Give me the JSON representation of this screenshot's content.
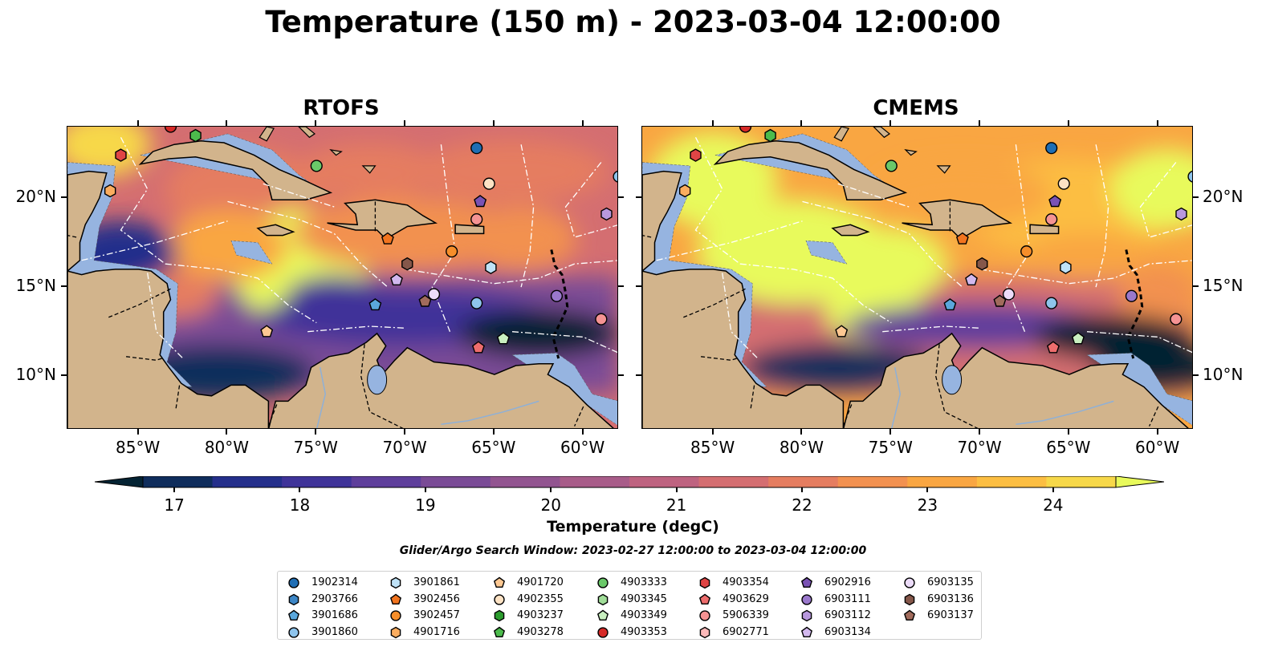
{
  "title": "Temperature (150 m) - 2023-03-04 12:00:00",
  "panels": [
    {
      "title": "RTOFS"
    },
    {
      "title": "CMEMS"
    }
  ],
  "axes": {
    "lon_ticks": [
      "85°W",
      "80°W",
      "75°W",
      "70°W",
      "65°W",
      "60°W"
    ],
    "lat_ticks": [
      "20°N",
      "15°N",
      "10°N"
    ],
    "lon_range": [
      -89,
      -58
    ],
    "lat_range": [
      7,
      24
    ]
  },
  "colorbar": {
    "label": "Temperature (degC)",
    "ticks": [
      "17",
      "18",
      "19",
      "20",
      "21",
      "22",
      "23",
      "24"
    ],
    "min": 16.75,
    "max": 24.5,
    "colors": [
      "#042333",
      "#0f2d5c",
      "#242f8b",
      "#3f3399",
      "#5e3e9b",
      "#7a4b96",
      "#925490",
      "#a85c89",
      "#be6380",
      "#d46e71",
      "#e57d60",
      "#f29150",
      "#f9a642",
      "#fcbe42",
      "#f7d849",
      "#e8fa5b"
    ]
  },
  "search_window": "Glider/Argo Search Window: 2023-02-27 12:00:00 to 2023-03-04 12:00:00",
  "legend": [
    {
      "label": "1902314",
      "marker": "circle",
      "color": "#1f6eb4"
    },
    {
      "label": "2903766",
      "marker": "hexagon",
      "color": "#3c86c6"
    },
    {
      "label": "3901686",
      "marker": "pentagon",
      "color": "#5aa7dc"
    },
    {
      "label": "3901860",
      "marker": "circle",
      "color": "#8ec4ec"
    },
    {
      "label": "3901861",
      "marker": "hexagon",
      "color": "#bfe2f7"
    },
    {
      "label": "3902456",
      "marker": "pentagon",
      "color": "#f2741f"
    },
    {
      "label": "3902457",
      "marker": "circle",
      "color": "#f68e2a"
    },
    {
      "label": "4901716",
      "marker": "hexagon",
      "color": "#fbad5f"
    },
    {
      "label": "4901720",
      "marker": "pentagon",
      "color": "#fdc892"
    },
    {
      "label": "4902355",
      "marker": "circle",
      "color": "#fde2c4"
    },
    {
      "label": "4903237",
      "marker": "hexagon",
      "color": "#2c9c2e"
    },
    {
      "label": "4903278",
      "marker": "pentagon",
      "color": "#4cbb4c"
    },
    {
      "label": "4903333",
      "marker": "circle",
      "color": "#6ac869"
    },
    {
      "label": "4903345",
      "marker": "hexagon",
      "color": "#a0dd98"
    },
    {
      "label": "4903349",
      "marker": "pentagon",
      "color": "#c9f0c0"
    },
    {
      "label": "4903353",
      "marker": "circle",
      "color": "#d62a28"
    },
    {
      "label": "4903354",
      "marker": "hexagon",
      "color": "#e04545"
    },
    {
      "label": "4903629",
      "marker": "pentagon",
      "color": "#ee6d6d"
    },
    {
      "label": "5906339",
      "marker": "circle",
      "color": "#f59393"
    },
    {
      "label": "6902771",
      "marker": "hexagon",
      "color": "#fbb9b9"
    },
    {
      "label": "6902916",
      "marker": "pentagon",
      "color": "#7a52b4"
    },
    {
      "label": "6903111",
      "marker": "circle",
      "color": "#9a78cc"
    },
    {
      "label": "6903112",
      "marker": "hexagon",
      "color": "#b898dd"
    },
    {
      "label": "6903134",
      "marker": "pentagon",
      "color": "#d2b8ee"
    },
    {
      "label": "6903135",
      "marker": "circle",
      "color": "#ecdcf9"
    },
    {
      "label": "6903136",
      "marker": "hexagon",
      "color": "#85574a"
    },
    {
      "label": "6903137",
      "marker": "pentagon",
      "color": "#a16b5c"
    }
  ],
  "floats": [
    {
      "lon": -83.2,
      "lat": 24.0,
      "marker": "circle",
      "color": "#d62a28"
    },
    {
      "lon": -81.8,
      "lat": 23.5,
      "marker": "hexagon",
      "color": "#4cbb4c"
    },
    {
      "lon": -86.0,
      "lat": 22.4,
      "marker": "hexagon",
      "color": "#e04545"
    },
    {
      "lon": -86.6,
      "lat": 20.4,
      "marker": "hexagon",
      "color": "#fbad5f"
    },
    {
      "lon": -75.0,
      "lat": 21.8,
      "marker": "circle",
      "color": "#6ac869"
    },
    {
      "lon": -66.0,
      "lat": 22.8,
      "marker": "circle",
      "color": "#1f6eb4"
    },
    {
      "lon": -65.3,
      "lat": 20.8,
      "marker": "circle",
      "color": "#fde2c4"
    },
    {
      "lon": -65.8,
      "lat": 19.8,
      "marker": "pentagon",
      "color": "#7a52b4"
    },
    {
      "lon": -66.0,
      "lat": 18.8,
      "marker": "circle",
      "color": "#f59393"
    },
    {
      "lon": -58.7,
      "lat": 19.1,
      "marker": "hexagon",
      "color": "#b898dd"
    },
    {
      "lon": -71.0,
      "lat": 17.7,
      "marker": "pentagon",
      "color": "#f2741f"
    },
    {
      "lon": -67.4,
      "lat": 17.0,
      "marker": "circle",
      "color": "#f68e2a"
    },
    {
      "lon": -65.2,
      "lat": 16.1,
      "marker": "hexagon",
      "color": "#bfe2f7"
    },
    {
      "lon": -69.9,
      "lat": 16.3,
      "marker": "hexagon",
      "color": "#85574a"
    },
    {
      "lon": -70.5,
      "lat": 15.4,
      "marker": "pentagon",
      "color": "#d2b8ee"
    },
    {
      "lon": -68.4,
      "lat": 14.6,
      "marker": "circle",
      "color": "#ecdcf9"
    },
    {
      "lon": -68.9,
      "lat": 14.2,
      "marker": "pentagon",
      "color": "#a16b5c"
    },
    {
      "lon": -66.0,
      "lat": 14.1,
      "marker": "circle",
      "color": "#8ec4ec"
    },
    {
      "lon": -71.7,
      "lat": 14.0,
      "marker": "pentagon",
      "color": "#5aa7dc"
    },
    {
      "lon": -61.5,
      "lat": 14.5,
      "marker": "circle",
      "color": "#9a78cc"
    },
    {
      "lon": -59.0,
      "lat": 13.2,
      "marker": "circle",
      "color": "#f59393"
    },
    {
      "lon": -77.8,
      "lat": 12.5,
      "marker": "pentagon",
      "color": "#fdc892"
    },
    {
      "lon": -64.5,
      "lat": 12.1,
      "marker": "pentagon",
      "color": "#c9f0c0"
    },
    {
      "lon": -65.9,
      "lat": 11.6,
      "marker": "pentagon",
      "color": "#ee6d6d"
    },
    {
      "lon": -58.0,
      "lat": 21.2,
      "marker": "circle",
      "color": "#8ec4ec"
    }
  ]
}
